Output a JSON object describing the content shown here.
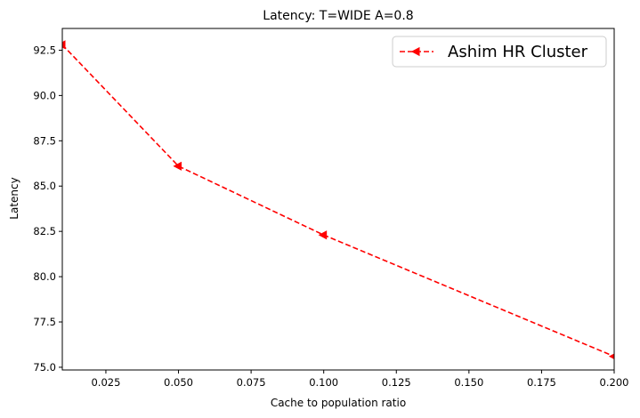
{
  "chart_data": {
    "type": "line",
    "title": "Latency: T=WIDE A=0.8",
    "xlabel": "Cache to population ratio",
    "ylabel": "Latency",
    "xlim": [
      0.01,
      0.2
    ],
    "ylim": [
      74.85,
      93.7
    ],
    "x_ticks": [
      0.025,
      0.05,
      0.075,
      0.1,
      0.125,
      0.15,
      0.175,
      0.2
    ],
    "x_tick_labels": [
      "0.025",
      "0.050",
      "0.075",
      "0.100",
      "0.125",
      "0.150",
      "0.175",
      "0.200"
    ],
    "y_ticks": [
      75.0,
      77.5,
      80.0,
      82.5,
      85.0,
      87.5,
      90.0,
      92.5
    ],
    "y_tick_labels": [
      "75.0",
      "77.5",
      "80.0",
      "82.5",
      "85.0",
      "87.5",
      "90.0",
      "92.5"
    ],
    "legend_position": "top-right",
    "grid": false,
    "series": [
      {
        "name": "Ashim HR Cluster",
        "color": "#ff0000",
        "line_style": "dashed",
        "marker": "triangle-left",
        "x": [
          0.01,
          0.05,
          0.1,
          0.2
        ],
        "y": [
          92.8,
          86.1,
          82.3,
          75.6
        ]
      }
    ]
  }
}
